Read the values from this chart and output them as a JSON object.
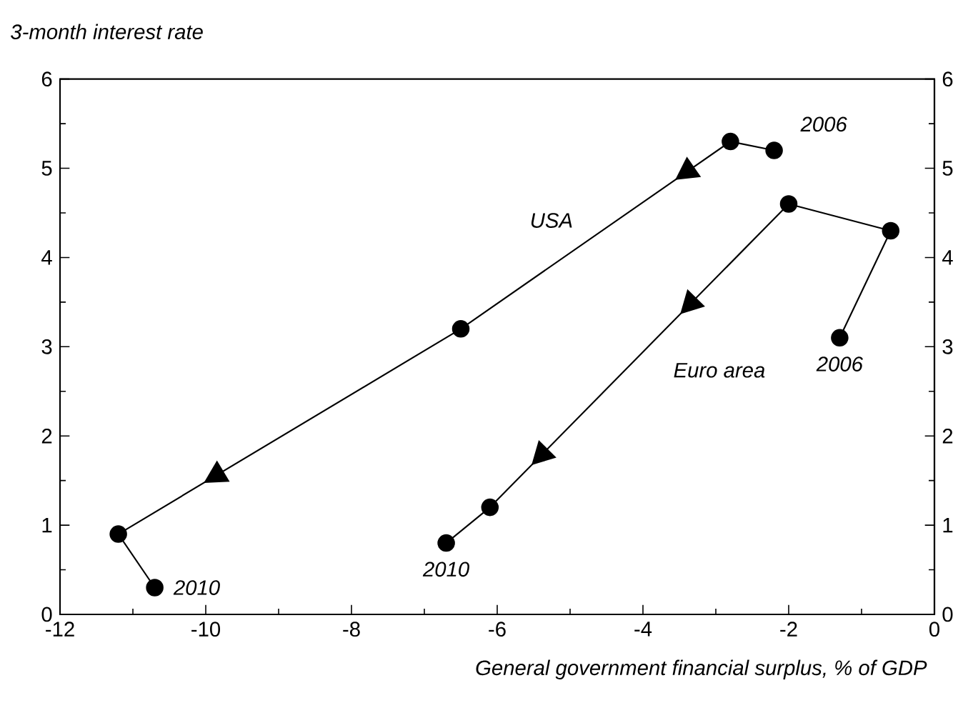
{
  "chart_data": {
    "type": "line",
    "ylabel": "3-month interest rate",
    "xlabel": "General government financial surplus, % of GDP",
    "series": [
      {
        "name": "USA",
        "color": "#000000",
        "x": [
          -2.2,
          -2.8,
          -6.5,
          -11.2,
          -10.7
        ],
        "values": [
          5.2,
          5.3,
          3.2,
          0.9,
          0.3
        ]
      },
      {
        "name": "Euro area",
        "color": "#000000",
        "x": [
          -1.3,
          -0.6,
          -2.0,
          -6.1,
          -6.7
        ],
        "values": [
          3.1,
          4.3,
          4.6,
          1.2,
          0.8
        ]
      }
    ],
    "annotations": [
      {
        "text": "2006",
        "x": -2.2,
        "y": 5.2
      },
      {
        "text": "2010",
        "x": -10.7,
        "y": 0.3
      },
      {
        "text": "2006",
        "x": -1.3,
        "y": 3.1
      },
      {
        "text": "2010",
        "x": -6.7,
        "y": 0.8
      }
    ],
    "xlim": [
      -12,
      0
    ],
    "xticks": [
      -12,
      -10,
      -8,
      -6,
      -4,
      -2,
      0
    ],
    "ylim": [
      0,
      6
    ],
    "yticks": [
      0,
      1,
      2,
      3,
      4,
      5,
      6
    ],
    "y2lim": [
      0,
      6
    ],
    "y2ticks": [
      0,
      1,
      2,
      3,
      4,
      5,
      6
    ],
    "marker": "circle",
    "line_style": "solid",
    "grid": false
  }
}
